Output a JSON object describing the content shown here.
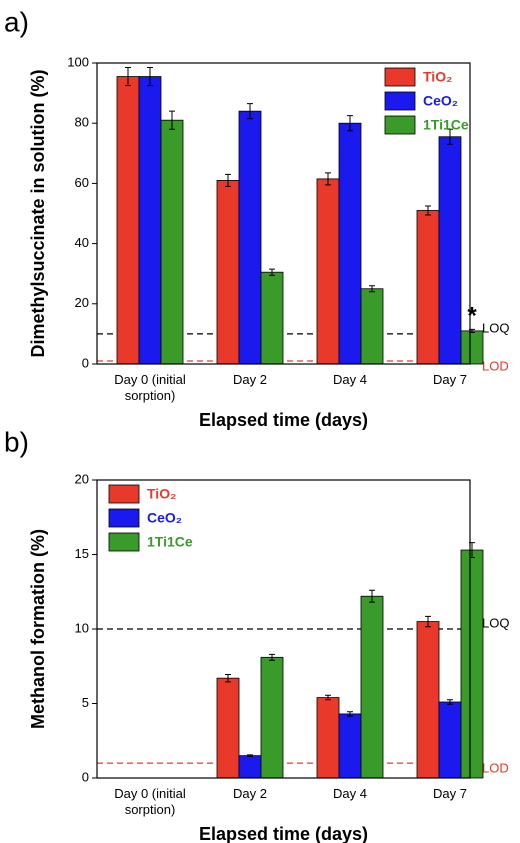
{
  "chart_data": [
    {
      "type": "bar",
      "panel_label": "a)",
      "xlabel": "Elapsed time (days)",
      "ylabel": "Dimethylsuccinate in solution (%)",
      "categories": [
        "Day 0 (initial sorption)",
        "Day 2",
        "Day 4",
        "Day 7"
      ],
      "series": [
        {
          "name": "TiO₂",
          "color": "#e8392b",
          "values": [
            95.5,
            61,
            61.5,
            51
          ],
          "errors": [
            3,
            2,
            2,
            1.5
          ]
        },
        {
          "name": "CeO₂",
          "color": "#1a1aee",
          "values": [
            95.5,
            84,
            80,
            75.5
          ],
          "errors": [
            3,
            2.5,
            2.5,
            2.5
          ]
        },
        {
          "name": "1Ti1Ce",
          "color": "#3a9a2a",
          "values": [
            81,
            30.5,
            25,
            11
          ],
          "errors": [
            3,
            1,
            1,
            0.5
          ]
        }
      ],
      "ylim": [
        0,
        100
      ],
      "yticks": [
        0,
        20,
        40,
        60,
        80,
        100
      ],
      "legend": "upper right",
      "thresholds": [
        {
          "label": "LOQ",
          "value": 10,
          "color": "#000000"
        },
        {
          "label": "LOD",
          "value": 1,
          "color": "#e8392b"
        }
      ],
      "annotations": [
        {
          "text": "*",
          "series": 2,
          "category": 3
        }
      ]
    },
    {
      "type": "bar",
      "panel_label": "b)",
      "xlabel": "Elapsed time (days)",
      "ylabel": "Methanol formation (%)",
      "categories": [
        "Day 0 (initial sorption)",
        "Day 2",
        "Day 4",
        "Day 7"
      ],
      "series": [
        {
          "name": "TiO₂",
          "color": "#e8392b",
          "values": [
            null,
            6.7,
            5.4,
            10.5
          ],
          "errors": [
            null,
            0.25,
            0.15,
            0.35
          ]
        },
        {
          "name": "CeO₂",
          "color": "#1a1aee",
          "values": [
            null,
            1.5,
            4.3,
            5.1
          ],
          "errors": [
            null,
            0.05,
            0.15,
            0.15
          ]
        },
        {
          "name": "1Ti1Ce",
          "color": "#3a9a2a",
          "values": [
            null,
            8.1,
            12.2,
            15.3
          ],
          "errors": [
            null,
            0.2,
            0.4,
            0.5
          ]
        }
      ],
      "ylim": [
        0,
        20
      ],
      "yticks": [
        0,
        5,
        10,
        15,
        20
      ],
      "legend": "upper left",
      "thresholds": [
        {
          "label": "LOQ",
          "value": 10,
          "color": "#000000"
        },
        {
          "label": "LOD",
          "value": 1,
          "color": "#e8392b"
        }
      ],
      "annotations": []
    }
  ]
}
